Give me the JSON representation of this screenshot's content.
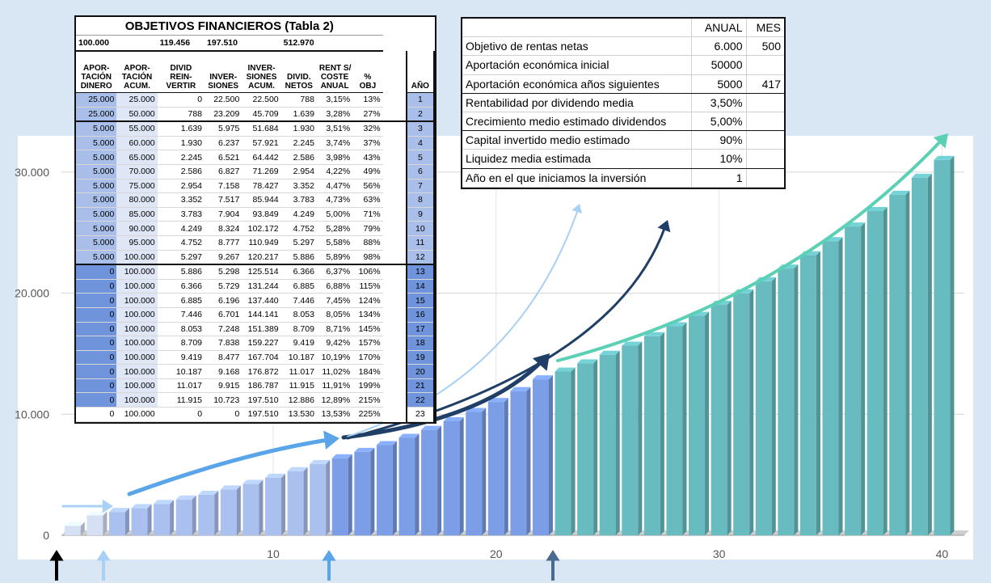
{
  "chart_data": {
    "type": "bar",
    "x": [
      1,
      2,
      3,
      4,
      5,
      6,
      7,
      8,
      9,
      10,
      11,
      12,
      13,
      14,
      15,
      16,
      17,
      18,
      19,
      20,
      21,
      22,
      23,
      24,
      25,
      26,
      27,
      28,
      29,
      30,
      31,
      32,
      33,
      34,
      35,
      36,
      37,
      38,
      39,
      40
    ],
    "values": [
      788,
      1639,
      1930,
      2245,
      2586,
      2954,
      3352,
      3783,
      4249,
      4752,
      5297,
      5886,
      6366,
      6885,
      7446,
      8053,
      8709,
      9419,
      10187,
      11017,
      11915,
      12886,
      13530,
      14207,
      14917,
      15663,
      16446,
      17268,
      18132,
      19038,
      19990,
      20990,
      22039,
      23141,
      24298,
      25513,
      26789,
      28128,
      29535,
      31012
    ],
    "series_colors": {
      "years_1_2": "#d6e0f4",
      "years_3_12": "#aac0ee",
      "years_13_22": "#7b9ee6",
      "years_23_40": "#68bcc0"
    },
    "ylim": [
      0,
      33000
    ],
    "xlim": [
      0.5,
      41
    ],
    "y_ticks": [
      "0",
      "10.000",
      "20.000",
      "30.000"
    ],
    "x_ticks": [
      "10",
      "20",
      "30",
      "40"
    ],
    "grid": true,
    "arrow_colors": {
      "start": "#000000",
      "light": "#a9d1f5",
      "mid": "#5aa5ea",
      "dark": "#1f3f66",
      "slate": "#4a6a8e",
      "teal": "#5bd0b5"
    }
  },
  "table2": {
    "title": "OBJETIVOS FINANCIEROS (Tabla 2)",
    "totals": [
      "100.000",
      "",
      "119.456",
      "197.510",
      "",
      "512.970",
      "",
      ""
    ],
    "headers": [
      "APOR-\nTACIÓN\nDINERO",
      "APOR-\nTACIÓN\nACUM.",
      "DIVID\nREIN-\nVERTIR",
      "INVER-\nSIONES",
      "INVER-\nSIONES\nACUM.",
      "DIVID.\nNETOS",
      "RENT S/\nCOSTE\nANUAL",
      "%\nOBJ",
      "",
      "AÑO"
    ],
    "rows": [
      [
        "25.000",
        "25.000",
        "0",
        "22.500",
        "22.500",
        "788",
        "3,15%",
        "13%",
        "1"
      ],
      [
        "25.000",
        "50.000",
        "788",
        "23.209",
        "45.709",
        "1.639",
        "3,28%",
        "27%",
        "2"
      ],
      [
        "5.000",
        "55.000",
        "1.639",
        "5.975",
        "51.684",
        "1.930",
        "3,51%",
        "32%",
        "3"
      ],
      [
        "5.000",
        "60.000",
        "1.930",
        "6.237",
        "57.921",
        "2.245",
        "3,74%",
        "37%",
        "4"
      ],
      [
        "5.000",
        "65.000",
        "2.245",
        "6.521",
        "64.442",
        "2.586",
        "3,98%",
        "43%",
        "5"
      ],
      [
        "5.000",
        "70.000",
        "2.586",
        "6.827",
        "71.269",
        "2.954",
        "4,22%",
        "49%",
        "6"
      ],
      [
        "5.000",
        "75.000",
        "2.954",
        "7.158",
        "78.427",
        "3.352",
        "4,47%",
        "56%",
        "7"
      ],
      [
        "5.000",
        "80.000",
        "3.352",
        "7.517",
        "85.944",
        "3.783",
        "4,73%",
        "63%",
        "8"
      ],
      [
        "5.000",
        "85.000",
        "3.783",
        "7.904",
        "93.849",
        "4.249",
        "5,00%",
        "71%",
        "9"
      ],
      [
        "5.000",
        "90.000",
        "4.249",
        "8.324",
        "102.172",
        "4.752",
        "5,28%",
        "79%",
        "10"
      ],
      [
        "5.000",
        "95.000",
        "4.752",
        "8.777",
        "110.949",
        "5.297",
        "5,58%",
        "88%",
        "11"
      ],
      [
        "5.000",
        "100.000",
        "5.297",
        "9.267",
        "120.217",
        "5.886",
        "5,89%",
        "98%",
        "12"
      ],
      [
        "0",
        "100.000",
        "5.886",
        "5.298",
        "125.514",
        "6.366",
        "6,37%",
        "106%",
        "13"
      ],
      [
        "0",
        "100.000",
        "6.366",
        "5.729",
        "131.244",
        "6.885",
        "6,88%",
        "115%",
        "14"
      ],
      [
        "0",
        "100.000",
        "6.885",
        "6.196",
        "137.440",
        "7.446",
        "7,45%",
        "124%",
        "15"
      ],
      [
        "0",
        "100.000",
        "7.446",
        "6.701",
        "144.141",
        "8.053",
        "8,05%",
        "134%",
        "16"
      ],
      [
        "0",
        "100.000",
        "8.053",
        "7.248",
        "151.389",
        "8.709",
        "8,71%",
        "145%",
        "17"
      ],
      [
        "0",
        "100.000",
        "8.709",
        "7.838",
        "159.227",
        "9.419",
        "9,42%",
        "157%",
        "18"
      ],
      [
        "0",
        "100.000",
        "9.419",
        "8.477",
        "167.704",
        "10.187",
        "10,19%",
        "170%",
        "19"
      ],
      [
        "0",
        "100.000",
        "10.187",
        "9.168",
        "176.872",
        "11.017",
        "11,02%",
        "184%",
        "20"
      ],
      [
        "0",
        "100.000",
        "11.017",
        "9.915",
        "186.787",
        "11.915",
        "11,91%",
        "199%",
        "21"
      ],
      [
        "0",
        "100.000",
        "11.915",
        "10.723",
        "197.510",
        "12.886",
        "12,89%",
        "215%",
        "22"
      ],
      [
        "0",
        "100.000",
        "0",
        "0",
        "197.510",
        "13.530",
        "13,53%",
        "225%",
        "23"
      ]
    ]
  },
  "params": {
    "col_annual": "ANUAL",
    "col_month": "MES",
    "rows": [
      {
        "label": "Objetivo de rentas netas",
        "annual": "6.000",
        "month": "500"
      },
      {
        "label": "Aportación económica inicial",
        "annual": "50000",
        "month": ""
      },
      {
        "label": "Aportación económica años siguientes",
        "annual": "5000",
        "month": "417"
      },
      {
        "label": "Rentabilidad por dividendo media",
        "annual": "3,50%",
        "month": ""
      },
      {
        "label": "Crecimiento medio estimado dividendos",
        "annual": "5,00%",
        "month": ""
      },
      {
        "label": "Capital invertido medio estimado",
        "annual": "90%",
        "month": ""
      },
      {
        "label": "Liquidez media estimada",
        "annual": "10%",
        "month": ""
      },
      {
        "label": "Año en el que iniciamos la inversión",
        "annual": "1",
        "month": ""
      }
    ]
  }
}
